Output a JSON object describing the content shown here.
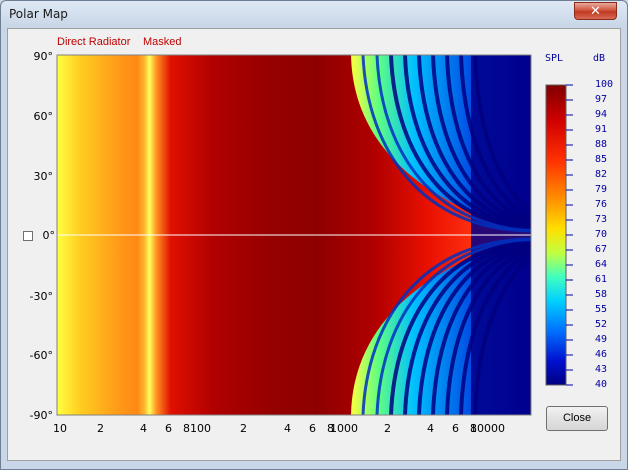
{
  "window": {
    "title": "Polar Map",
    "close_glyph": "✕"
  },
  "legend": {
    "direct_radiator": "Direct Radiator",
    "masked": "Masked"
  },
  "colorbar": {
    "spl_label": "SPL",
    "unit_label": "dB",
    "ticks": [
      "100",
      "97",
      "94",
      "91",
      "88",
      "85",
      "82",
      "79",
      "76",
      "73",
      "70",
      "67",
      "64",
      "61",
      "58",
      "55",
      "52",
      "49",
      "46",
      "43",
      "40"
    ]
  },
  "y_ticks": [
    "90°",
    "60°",
    "30°",
    "0°",
    "-30°",
    "-60°",
    "-90°"
  ],
  "x_ticks": [
    "10",
    "2",
    "4",
    "6",
    "8",
    "100",
    "2",
    "4",
    "6",
    "8",
    "1000",
    "2",
    "4",
    "6",
    "8",
    "10000"
  ],
  "close_button": {
    "label": "Close"
  },
  "chart_data": {
    "type": "heatmap",
    "title": "",
    "xlabel": "",
    "ylabel": "",
    "x_scale": "log",
    "xlim": [
      10,
      20000
    ],
    "ylim": [
      -90,
      90
    ],
    "colorbar_range": [
      40,
      100
    ],
    "colorbar_unit": "dB",
    "series": [
      {
        "name": "Direct Radiator"
      },
      {
        "name": "Masked"
      }
    ]
  }
}
